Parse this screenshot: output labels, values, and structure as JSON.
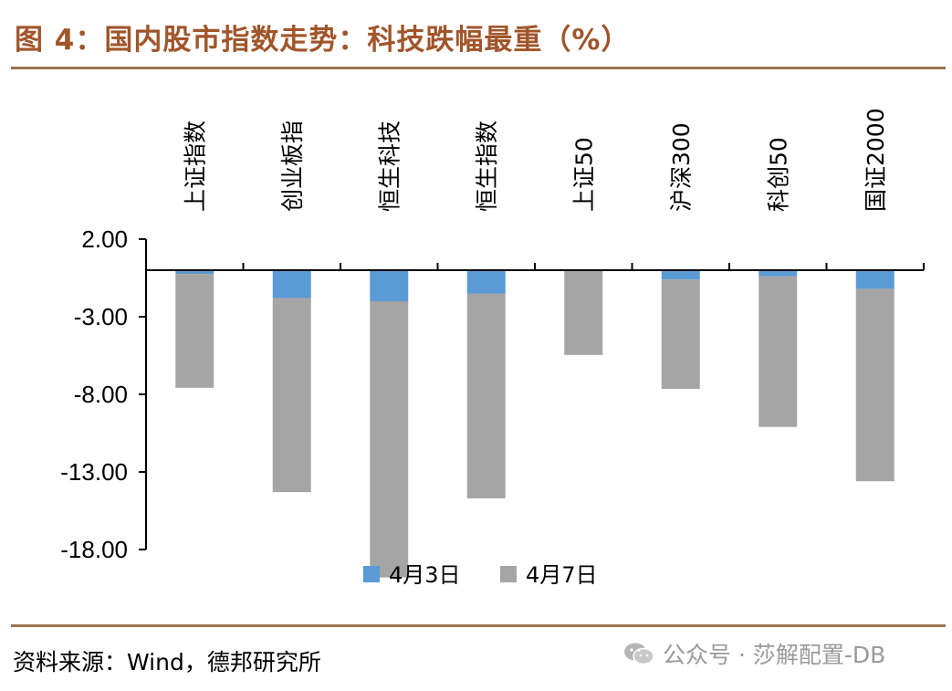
{
  "header": {
    "title": "图 4：国内股市指数走势：科技跌幅最重（%）"
  },
  "footer": {
    "source": "资料来源：Wind，德邦研究所",
    "watermark": "公众号 · 莎解配置-DB",
    "watermark_icon": "wechat-icon"
  },
  "colors": {
    "title": "#a0552a",
    "rule": "#a0714f",
    "series_apr3": "#5b9bd5",
    "series_apr7": "#a5a5a5"
  },
  "chart_data": {
    "type": "bar",
    "stacked": true,
    "categories": [
      "上证指数",
      "创业板指",
      "恒生科技",
      "恒生指数",
      "上证50",
      "沪深300",
      "科创50",
      "国证2000"
    ],
    "series": [
      {
        "name": "4月3日",
        "values": [
          -0.24,
          -1.8,
          -2.0,
          -1.5,
          -0.05,
          -0.6,
          -0.4,
          -1.2
        ]
      },
      {
        "name": "4月7日",
        "values": [
          -7.34,
          -12.5,
          -17.8,
          -13.2,
          -5.41,
          -7.05,
          -9.7,
          -12.4
        ]
      }
    ],
    "yticks": [
      "2.00",
      "-3.00",
      "-8.00",
      "-13.00",
      "-18.00"
    ],
    "ylim": [
      -18,
      2
    ],
    "legend_position": "bottom",
    "category_label_position": "top-vertical",
    "grid": false
  }
}
